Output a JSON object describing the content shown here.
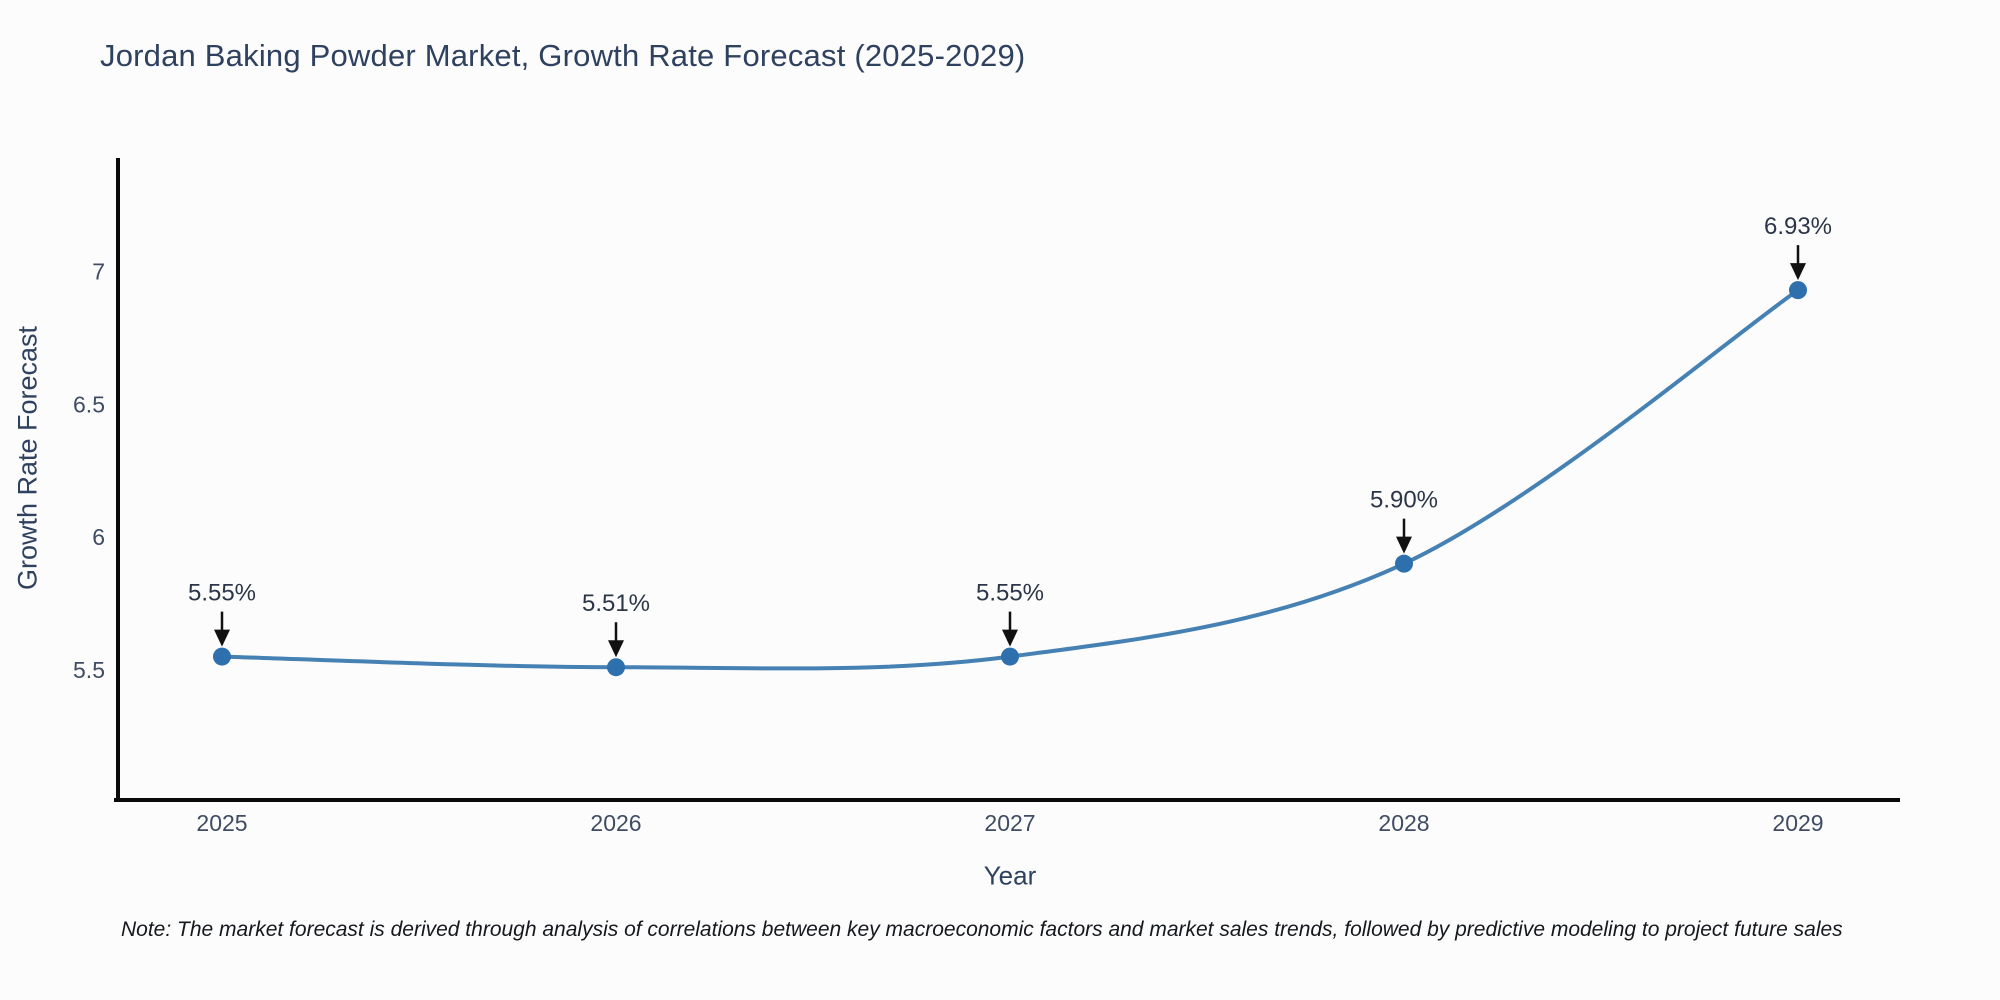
{
  "chart_data": {
    "type": "line",
    "curve": "spline",
    "title": "Jordan Baking Powder Market, Growth Rate Forecast (2025-2029)",
    "categories": [
      "2025",
      "2026",
      "2027",
      "2028",
      "2029"
    ],
    "values": [
      5.55,
      5.51,
      5.55,
      5.9,
      6.93
    ],
    "point_labels": [
      "5.55%",
      "5.51%",
      "5.55%",
      "5.90%",
      "6.93%"
    ],
    "xlabel": "Year",
    "ylabel": "Growth Rate Forecast",
    "yticks": [
      "5.5",
      "6",
      "6.5",
      "7"
    ],
    "ylim": [
      5.01,
      7.42
    ],
    "grid": false,
    "legend": "none",
    "line_color": "#4681b4",
    "marker_color": "#2e6fae",
    "axis_color": "#0a0a0a",
    "annotation_arrow_color": "#111111"
  },
  "note": "Note: The market forecast is derived through analysis of correlations between key macroeconomic factors and market sales trends, followed by predictive modeling to project future sales"
}
